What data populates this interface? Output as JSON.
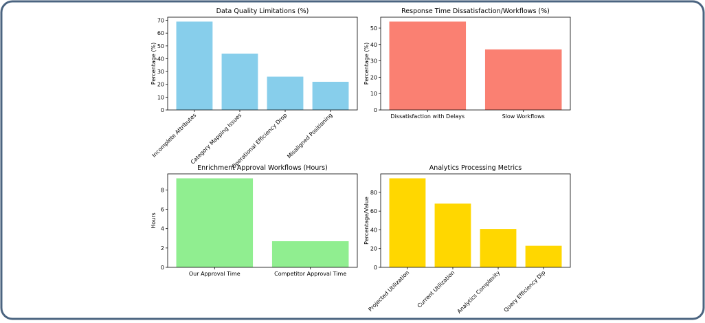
{
  "chart_data": [
    {
      "type": "bar",
      "title": "Data Quality Limitations (%)",
      "y_label": "Percentage (%)",
      "categories": [
        "Incomplete Attributes",
        "Category Mapping Issues",
        "Operational Efficiency Drop",
        "Misaligned Positioning"
      ],
      "values": [
        69,
        44,
        26,
        22
      ],
      "color": "#87ceeb",
      "ylim": [
        0,
        72.45
      ],
      "yticks": [
        0,
        10,
        20,
        30,
        40,
        50,
        60,
        70
      ],
      "xtick_rotation": 45
    },
    {
      "type": "bar",
      "title": "Response Time Dissatisfaction/Workflows (%)",
      "y_label": "Percentage (%)",
      "categories": [
        "Dissatisfaction with Delays",
        "Slow Workflows"
      ],
      "values": [
        54,
        37
      ],
      "color": "#fa8072",
      "ylim": [
        0,
        56.7
      ],
      "yticks": [
        0,
        10,
        20,
        30,
        40,
        50
      ],
      "xtick_rotation": 0
    },
    {
      "type": "bar",
      "title": "Enrichment Approval Workflows (Hours)",
      "y_label": "Hours",
      "categories": [
        "Our Approval Time",
        "Competitor Approval Time"
      ],
      "values": [
        9.2,
        2.7
      ],
      "color": "#90ee90",
      "ylim": [
        0,
        9.66
      ],
      "yticks": [
        0,
        2,
        4,
        6,
        8
      ],
      "xtick_rotation": 0
    },
    {
      "type": "bar",
      "title": "Analytics Processing Metrics",
      "y_label": "Percentage/Value",
      "categories": [
        "Projected Utilization",
        "Current Utilization",
        "Analytics Complexity",
        "Query Efficiency Dip"
      ],
      "values": [
        95,
        68,
        41,
        23
      ],
      "color": "#ffd700",
      "ylim": [
        0,
        99.75
      ],
      "yticks": [
        0,
        20,
        40,
        60,
        80
      ],
      "xtick_rotation": 45
    }
  ]
}
